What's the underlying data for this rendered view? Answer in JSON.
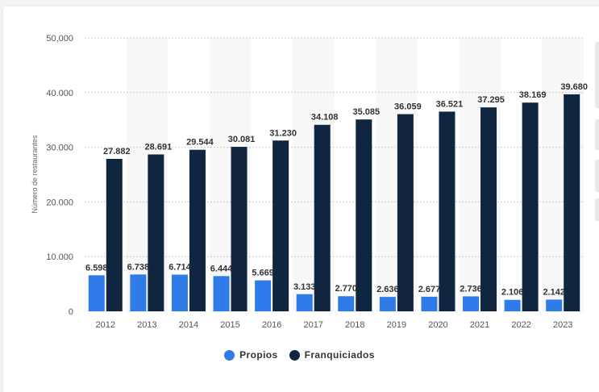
{
  "chart_data": {
    "type": "bar",
    "ylabel": "Número de restaurantes",
    "ylim": [
      0,
      50000
    ],
    "yticks": [
      0,
      10000,
      20000,
      30000,
      40000,
      50000
    ],
    "ytick_labels": [
      "0",
      "10.000",
      "20.000",
      "30.000",
      "40.000",
      "50,000"
    ],
    "grid": true,
    "legend_position": "bottom",
    "categories": [
      "2012",
      "2013",
      "2014",
      "2015",
      "2016",
      "2017",
      "2018",
      "2019",
      "2020",
      "2021",
      "2022",
      "2023"
    ],
    "series": [
      {
        "name": "Propios",
        "color": "#2f7bea",
        "values": [
          6598,
          6738,
          6714,
          6444,
          5669,
          3133,
          2770,
          2636,
          2677,
          2736,
          2106,
          2142
        ],
        "labels": [
          "6.598",
          "6.738",
          "6.714",
          "6.444",
          "5.669",
          "3.133",
          "2.770",
          "2.636",
          "2.677",
          "2.736",
          "2.106",
          "2.142"
        ]
      },
      {
        "name": "Franquiciados",
        "color": "#10253f",
        "values": [
          27882,
          28691,
          29544,
          30081,
          31230,
          34108,
          35085,
          36059,
          36521,
          37295,
          38169,
          39680
        ],
        "labels": [
          "27.882",
          "28.691",
          "29.544",
          "30.081",
          "31.230",
          "34.108",
          "35.085",
          "36.059",
          "36.521",
          "37.295",
          "38.169",
          "39.680"
        ]
      }
    ]
  }
}
